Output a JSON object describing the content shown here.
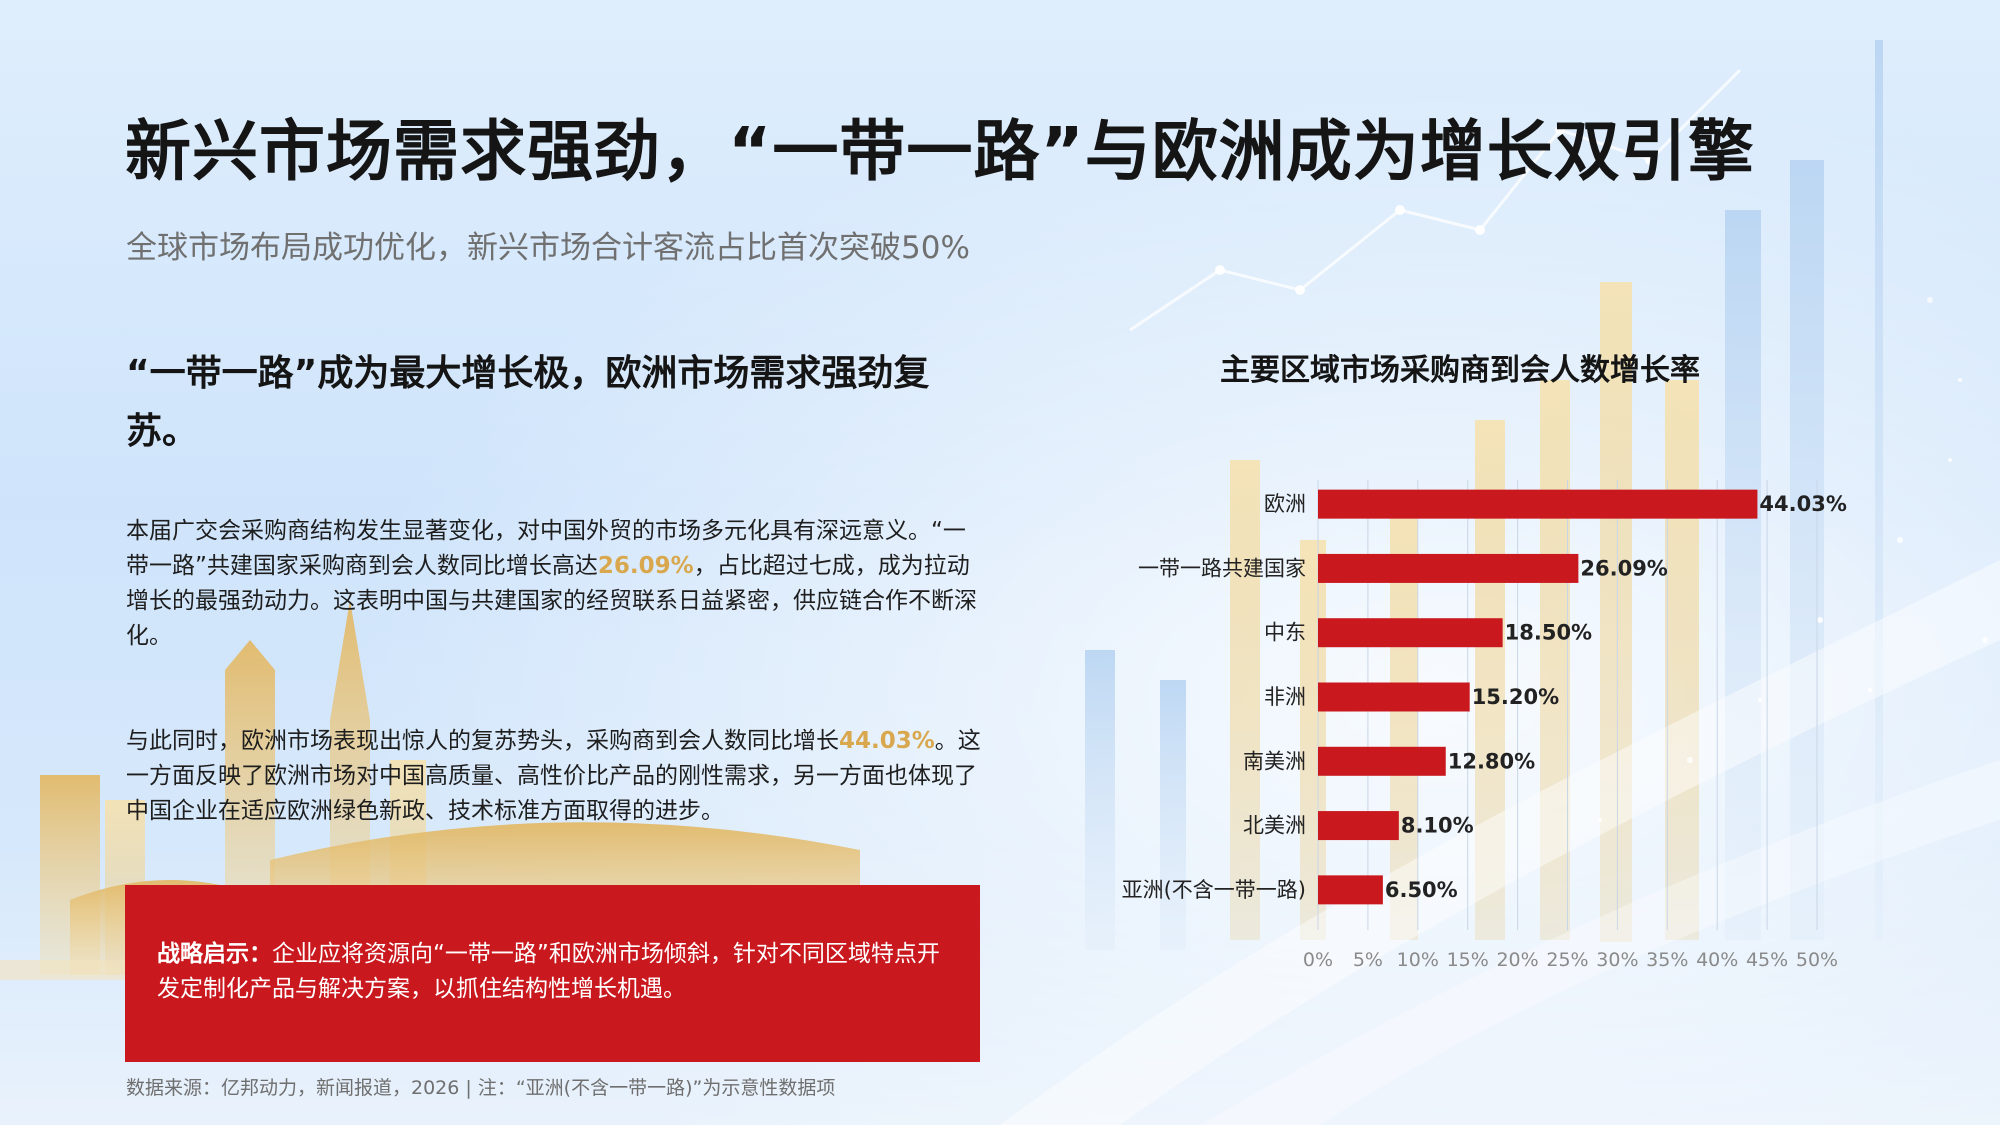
{
  "header": {
    "title": "新兴市场需求强劲，“一带一路”与欧洲成为增长双引擎",
    "subtitle": "全球市场布局成功优化，新兴市场合计客流占比首次突破50%"
  },
  "left": {
    "heading": "“一带一路”成为最大增长极，欧洲市场需求强劲复苏。",
    "para1": {
      "before": "本届广交会采购商结构发生显著变化，对中国外贸的市场多元化具有深远意义。“一带一路”共建国家采购商到会人数同比增长高达",
      "highlight": "26.09%",
      "after": "，占比超过七成，成为拉动增长的最强劲动力。这表明中国与共建国家的经贸联系日益紧密，供应链合作不断深化。"
    },
    "para2": {
      "before": "与此同时，欧洲市场表现出惊人的复苏势头，采购商到会人数同比增长",
      "highlight": "44.03%",
      "after": "。这一方面反映了欧洲市场对中国高质量、高性价比产品的刚性需求，另一方面也体现了中国企业在适应欧洲绿色新政、技术标准方面取得的进步。"
    },
    "callout": {
      "label": "战略启示：",
      "text": "企业应将资源向“一带一路”和欧洲市场倾斜，针对不同区域特点开发定制化产品与解决方案，以抓住结构性增长机遇。"
    },
    "footnote": "数据来源：亿邦动力，新闻报道，2026 | 注：“亚洲(不含一带一路)”为示意性数据项"
  },
  "chart_data": {
    "type": "bar",
    "orientation": "horizontal",
    "title": "主要区域市场采购商到会人数增长率",
    "categories": [
      "欧洲",
      "一带一路共建国家",
      "中东",
      "非洲",
      "南美洲",
      "北美洲",
      "亚洲(不含一带一路)"
    ],
    "values": [
      44.03,
      26.09,
      18.5,
      15.2,
      12.8,
      8.1,
      6.5
    ],
    "data_labels": [
      "44.03%",
      "26.09%",
      "18.50%",
      "15.20%",
      "12.80%",
      "8.10%",
      "6.50%"
    ],
    "xticks": [
      "0%",
      "5%",
      "10%",
      "15%",
      "20%",
      "25%",
      "30%",
      "35%",
      "40%",
      "45%",
      "50%"
    ],
    "xlim": [
      0,
      50
    ],
    "grid": "vertical",
    "legend": "none",
    "bar_color": "#c9191f"
  }
}
